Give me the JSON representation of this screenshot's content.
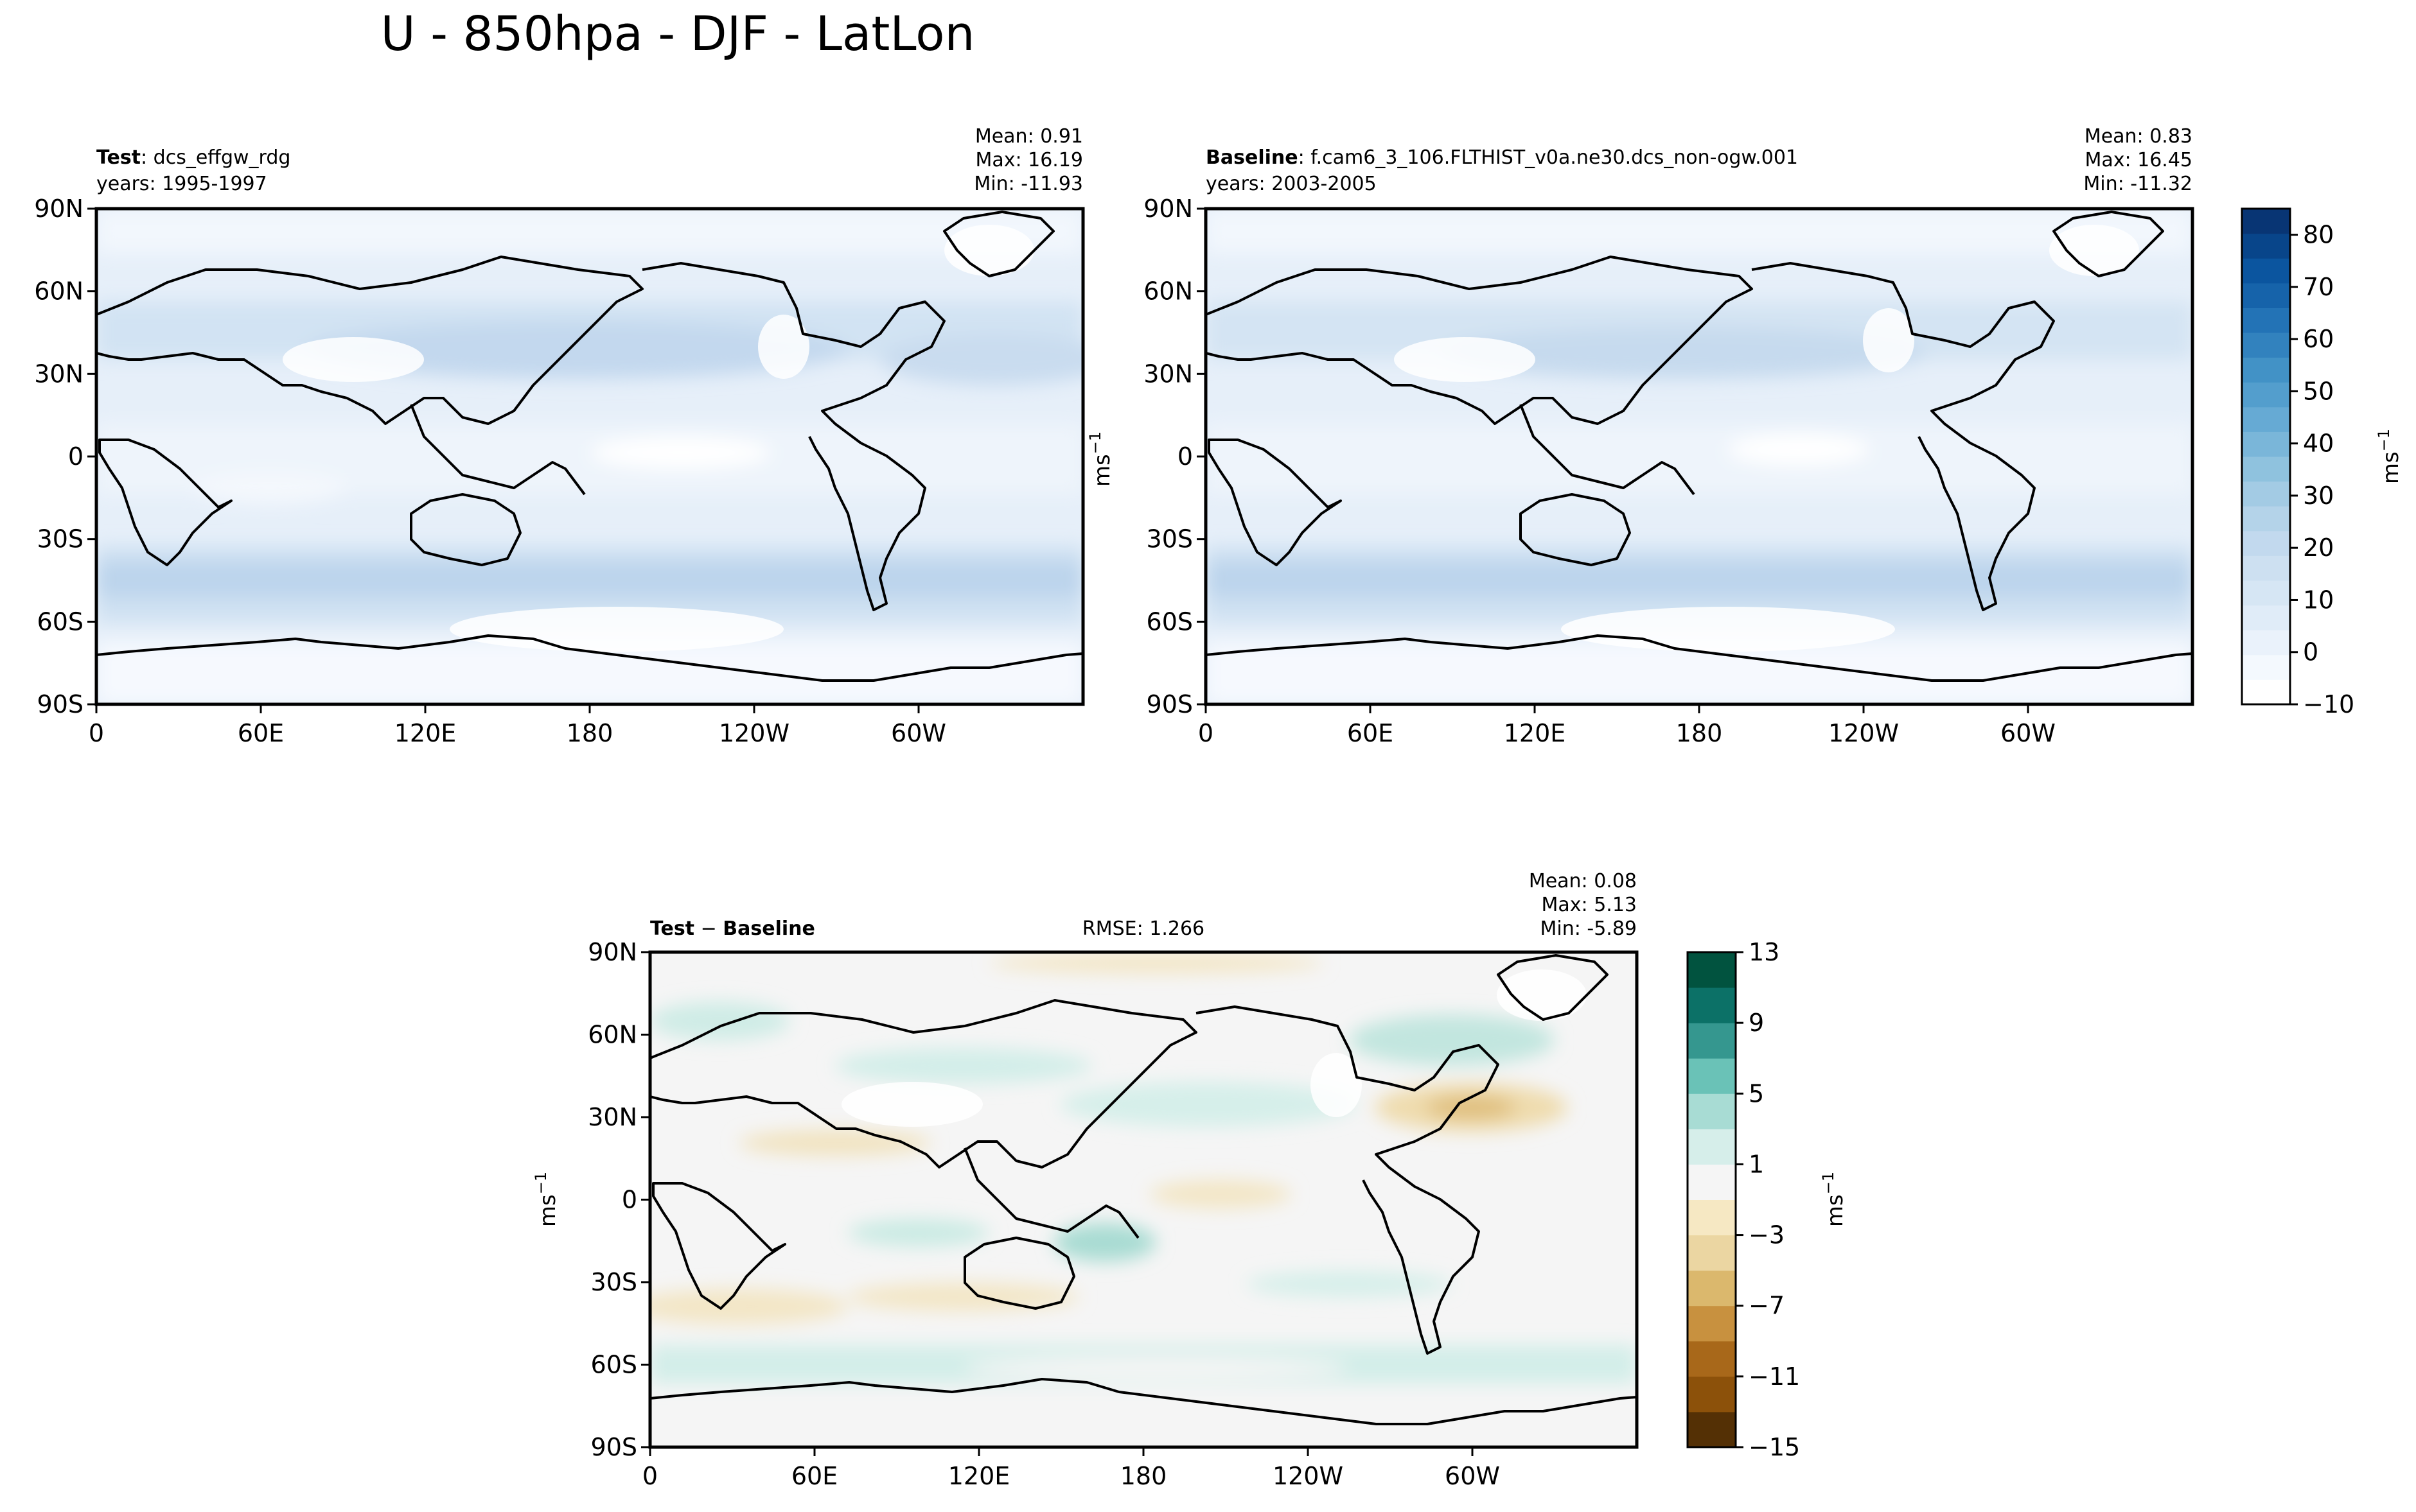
{
  "figure": {
    "title": "U - 850hpa - DJF - LatLon"
  },
  "chart_data": [
    {
      "type": "heatmap",
      "panel": "test",
      "label_bold": "Test",
      "label_rest": ": dcs_effgw_rdg",
      "years": "years: 1995-1997",
      "stats": [
        "Mean:  0.91",
        "Max: 16.19",
        "Min: -11.93"
      ],
      "xticks": [
        "0",
        "60E",
        "120E",
        "180",
        "120W",
        "60W"
      ],
      "yticks": [
        "90N",
        "60N",
        "30N",
        "0",
        "30S",
        "60S",
        "90S"
      ],
      "xlim": [
        0,
        360
      ],
      "ylim": [
        -90,
        90
      ],
      "colormap": "Blues",
      "colorbar": "shared-right",
      "note": "zonal wind contours, strongest near 40-55S and 30-45N"
    },
    {
      "type": "heatmap",
      "panel": "baseline",
      "label_bold": "Baseline",
      "label_rest": ": f.cam6_3_106.FLTHIST_v0a.ne30.dcs_non-ogw.001",
      "years": "years: 2003-2005",
      "stats": [
        "Mean:  0.83",
        "Max: 16.45",
        "Min: -11.32"
      ],
      "xticks": [
        "0",
        "60E",
        "120E",
        "180",
        "120W",
        "60W"
      ],
      "yticks": [
        "90N",
        "60N",
        "30N",
        "0",
        "30S",
        "60S",
        "90S"
      ],
      "xlim": [
        0,
        360
      ],
      "ylim": [
        -90,
        90
      ],
      "colormap": "Blues"
    },
    {
      "type": "heatmap",
      "panel": "difference",
      "label_bold": "Test",
      "label_minus": " − ",
      "label_bold2": "Baseline",
      "rmse": "RMSE: 1.266",
      "stats": [
        "Mean:  0.08",
        "Max:  5.13",
        "Min: -5.89"
      ],
      "xticks": [
        "0",
        "60E",
        "120E",
        "180",
        "120W",
        "60W"
      ],
      "yticks": [
        "90N",
        "60N",
        "30N",
        "0",
        "30S",
        "60S",
        "90S"
      ],
      "xlim": [
        0,
        360
      ],
      "ylim": [
        -90,
        90
      ],
      "colormap": "BrBG"
    }
  ],
  "colorbars": {
    "blues": {
      "unit": "ms",
      "unit_sup": "−1",
      "range": [
        -10,
        85
      ],
      "ticks": [
        80,
        70,
        60,
        50,
        40,
        30,
        20,
        10,
        0,
        -10
      ],
      "tick_labels": [
        "80",
        "70",
        "60",
        "50",
        "40",
        "30",
        "20",
        "10",
        "0",
        "−10"
      ],
      "colors": [
        "#ffffff",
        "#f4f9fe",
        "#eaf2fb",
        "#e0ecf8",
        "#d6e6f4",
        "#cde0f1",
        "#c2d9ee",
        "#b4d3e9",
        "#a3cbe4",
        "#8fc2de",
        "#7ab6d9",
        "#66aad4",
        "#539ecd",
        "#4292c6",
        "#3282be",
        "#2373b6",
        "#1663aa",
        "#0b559f",
        "#08458a",
        "#083574"
      ]
    },
    "diff": {
      "unit": "ms",
      "unit_sup": "−1",
      "range": [
        -15,
        13
      ],
      "tick_values": [
        13,
        9,
        5,
        1,
        -3,
        -7,
        -11,
        -15
      ],
      "tick_labels": [
        "13",
        "9",
        "5",
        "1",
        "−3",
        "−7",
        "−11",
        "−15"
      ],
      "colors": [
        "#543005",
        "#8c510a",
        "#a8681a",
        "#c8913f",
        "#dbb86d",
        "#ebd6a2",
        "#f6e8c3",
        "#f5f5f5",
        "#d6eeea",
        "#a8dcd4",
        "#6ac2b7",
        "#35978f",
        "#0c7167",
        "#01533f"
      ]
    }
  },
  "side_labels": {
    "left_unit_top": "ms",
    "left_unit_top_sup": "−1",
    "left_unit_bottom": "ms",
    "left_unit_bottom_sup": "−1"
  }
}
